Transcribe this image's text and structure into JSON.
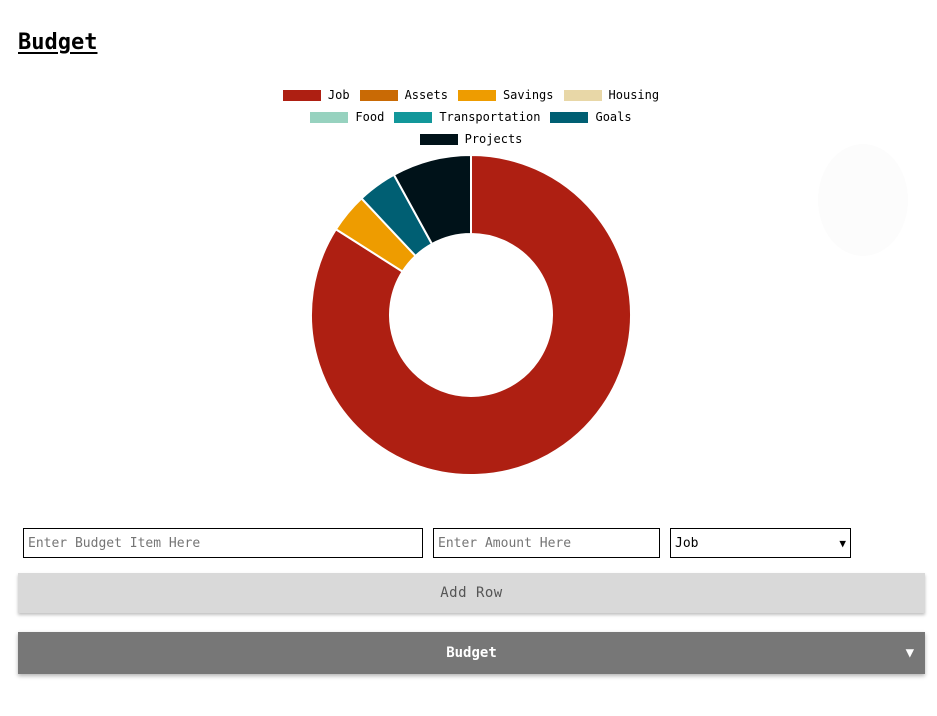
{
  "page": {
    "title": "Budget"
  },
  "form": {
    "item_placeholder": "Enter Budget Item Here",
    "amount_placeholder": "Enter Amount Here",
    "category_selected": "Job",
    "add_row_label": "Add Row"
  },
  "accordion": {
    "title": "Budget",
    "arrow_icon": "triangle-down-icon"
  },
  "chart_data": {
    "type": "pie",
    "variant": "doughnut",
    "legend_position": "top",
    "categories": [
      "Job",
      "Assets",
      "Savings",
      "Housing",
      "Food",
      "Transportation",
      "Goals",
      "Projects"
    ],
    "colors": [
      "#ae1f12",
      "#c96a05",
      "#ee9c00",
      "#e8d7a7",
      "#97d2bf",
      "#12979a",
      "#005f73",
      "#001219"
    ],
    "values": [
      84,
      0,
      4,
      0,
      0,
      0,
      4,
      8
    ]
  }
}
